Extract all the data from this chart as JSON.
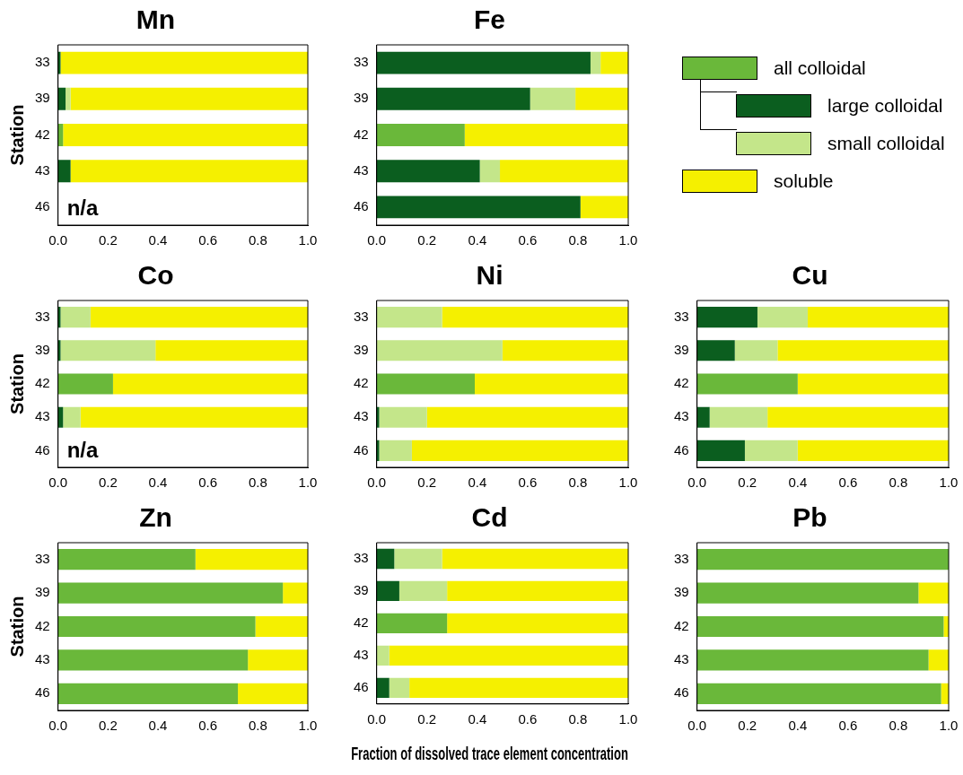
{
  "chart_data": [
    {
      "type": "bar",
      "title": "Mn",
      "ylabel": "Station",
      "orientation": "horizontal",
      "stacked": true,
      "categories": [
        "33",
        "39",
        "42",
        "43",
        "46"
      ],
      "xlim": [
        0,
        1
      ],
      "xticks": [
        {
          "value": 0,
          "label": "0.0"
        },
        {
          "value": 0.2,
          "label": "0.2"
        },
        {
          "value": 0.4,
          "label": "0.4"
        },
        {
          "value": 0.6,
          "label": "0.6"
        },
        {
          "value": 0.8,
          "label": "0.8"
        },
        {
          "value": 1,
          "label": "1.0"
        }
      ],
      "annotations": [
        "n/a"
      ],
      "series": [
        {
          "color": "#6ab83a",
          "values": [
            null,
            null,
            0.02,
            null,
            null
          ]
        },
        {
          "color": "#0b5e1f",
          "values": [
            0.01,
            0.03,
            null,
            0.05,
            null
          ]
        },
        {
          "color": "#c4e68a",
          "values": [
            null,
            0.02,
            null,
            null,
            null
          ]
        },
        {
          "color": "#f5f000",
          "values": [
            0.99,
            0.95,
            0.98,
            0.95,
            null
          ]
        }
      ]
    },
    {
      "type": "bar",
      "title": "Fe",
      "orientation": "horizontal",
      "stacked": true,
      "legend": "right",
      "categories": [
        "33",
        "39",
        "42",
        "43",
        "46"
      ],
      "xlim": [
        0,
        1
      ],
      "xticks": [
        {
          "value": 0,
          "label": "0.0"
        },
        {
          "value": 0.2,
          "label": "0.2"
        },
        {
          "value": 0.4,
          "label": "0.4"
        },
        {
          "value": 0.6,
          "label": "0.6"
        },
        {
          "value": 0.8,
          "label": "0.8"
        },
        {
          "value": 1,
          "label": "1.0"
        }
      ],
      "series": [
        {
          "name": "all colloidal",
          "color": "#6ab83a",
          "values": [
            null,
            null,
            0.35,
            null,
            null
          ]
        },
        {
          "name": "large colloidal",
          "color": "#0b5e1f",
          "values": [
            0.85,
            0.61,
            null,
            0.41,
            0.81
          ]
        },
        {
          "name": "small colloidal",
          "color": "#c4e68a",
          "values": [
            0.04,
            0.18,
            null,
            0.08,
            null
          ]
        },
        {
          "name": "soluble",
          "color": "#f5f000",
          "values": [
            0.11,
            0.21,
            0.65,
            0.51,
            0.19
          ]
        }
      ]
    },
    {
      "type": "bar",
      "title": "Co",
      "ylabel": "Station",
      "orientation": "horizontal",
      "stacked": true,
      "categories": [
        "33",
        "39",
        "42",
        "43",
        "46"
      ],
      "xlim": [
        0,
        1
      ],
      "xticks": [
        {
          "value": 0,
          "label": "0.0"
        },
        {
          "value": 0.2,
          "label": "0.2"
        },
        {
          "value": 0.4,
          "label": "0.4"
        },
        {
          "value": 0.6,
          "label": "0.6"
        },
        {
          "value": 0.8,
          "label": "0.8"
        },
        {
          "value": 1,
          "label": "1.0"
        }
      ],
      "annotations": [
        "n/a"
      ],
      "series": [
        {
          "color": "#6ab83a",
          "values": [
            null,
            null,
            0.22,
            null,
            null
          ]
        },
        {
          "color": "#0b5e1f",
          "values": [
            0.01,
            0.01,
            null,
            0.02,
            null
          ]
        },
        {
          "color": "#c4e68a",
          "values": [
            0.12,
            0.38,
            null,
            0.07,
            null
          ]
        },
        {
          "color": "#f5f000",
          "values": [
            0.87,
            0.61,
            0.78,
            0.91,
            null
          ]
        }
      ]
    },
    {
      "type": "bar",
      "title": "Ni",
      "orientation": "horizontal",
      "stacked": true,
      "categories": [
        "33",
        "39",
        "42",
        "43",
        "46"
      ],
      "xlim": [
        0,
        1
      ],
      "xticks": [
        {
          "value": 0,
          "label": "0.0"
        },
        {
          "value": 0.2,
          "label": "0.2"
        },
        {
          "value": 0.4,
          "label": "0.4"
        },
        {
          "value": 0.6,
          "label": "0.6"
        },
        {
          "value": 0.8,
          "label": "0.8"
        },
        {
          "value": 1,
          "label": "1.0"
        }
      ],
      "series": [
        {
          "color": "#6ab83a",
          "values": [
            null,
            null,
            0.39,
            null,
            null
          ]
        },
        {
          "color": "#0b5e1f",
          "values": [
            null,
            null,
            null,
            0.01,
            0.01
          ]
        },
        {
          "color": "#c4e68a",
          "values": [
            0.26,
            0.5,
            null,
            0.19,
            0.13
          ]
        },
        {
          "color": "#f5f000",
          "values": [
            0.74,
            0.5,
            0.61,
            0.8,
            0.86
          ]
        }
      ]
    },
    {
      "type": "bar",
      "title": "Cu",
      "orientation": "horizontal",
      "stacked": true,
      "categories": [
        "33",
        "39",
        "42",
        "43",
        "46"
      ],
      "xlim": [
        0,
        1
      ],
      "xticks": [
        {
          "value": 0,
          "label": "0.0"
        },
        {
          "value": 0.2,
          "label": "0.2"
        },
        {
          "value": 0.4,
          "label": "0.4"
        },
        {
          "value": 0.6,
          "label": "0.6"
        },
        {
          "value": 0.8,
          "label": "0.8"
        },
        {
          "value": 1,
          "label": "1.0"
        }
      ],
      "series": [
        {
          "color": "#6ab83a",
          "values": [
            null,
            null,
            0.4,
            null,
            null
          ]
        },
        {
          "color": "#0b5e1f",
          "values": [
            0.24,
            0.15,
            null,
            0.05,
            0.19
          ]
        },
        {
          "color": "#c4e68a",
          "values": [
            0.2,
            0.17,
            null,
            0.23,
            0.21
          ]
        },
        {
          "color": "#f5f000",
          "values": [
            0.56,
            0.68,
            0.6,
            0.72,
            0.6
          ]
        }
      ]
    },
    {
      "type": "bar",
      "title": "Zn",
      "ylabel": "Station",
      "orientation": "horizontal",
      "stacked": true,
      "categories": [
        "33",
        "39",
        "42",
        "43",
        "46"
      ],
      "xlim": [
        0,
        1
      ],
      "xticks": [
        {
          "value": 0,
          "label": "0.0"
        },
        {
          "value": 0.2,
          "label": "0.2"
        },
        {
          "value": 0.4,
          "label": "0.4"
        },
        {
          "value": 0.6,
          "label": "0.6"
        },
        {
          "value": 0.8,
          "label": "0.8"
        },
        {
          "value": 1,
          "label": "1.0"
        }
      ],
      "series": [
        {
          "color": "#6ab83a",
          "values": [
            0.55,
            0.9,
            0.79,
            0.76,
            0.72
          ]
        },
        {
          "color": "#f5f000",
          "values": [
            0.45,
            0.1,
            0.21,
            0.24,
            0.28
          ]
        }
      ]
    },
    {
      "type": "bar",
      "title": "Cd",
      "xlabel": "Fraction of dissolved trace element concentration",
      "orientation": "horizontal",
      "stacked": true,
      "categories": [
        "33",
        "39",
        "42",
        "43",
        "46"
      ],
      "xlim": [
        0,
        1
      ],
      "xticks": [
        {
          "value": 0,
          "label": "0.0"
        },
        {
          "value": 0.2,
          "label": "0.2"
        },
        {
          "value": 0.4,
          "label": "0.4"
        },
        {
          "value": 0.6,
          "label": "0.6"
        },
        {
          "value": 0.8,
          "label": "0.8"
        },
        {
          "value": 1,
          "label": "1.0"
        }
      ],
      "series": [
        {
          "color": "#6ab83a",
          "values": [
            null,
            null,
            0.28,
            null,
            null
          ]
        },
        {
          "color": "#0b5e1f",
          "values": [
            0.07,
            0.09,
            null,
            null,
            0.05
          ]
        },
        {
          "color": "#c4e68a",
          "values": [
            0.19,
            0.19,
            null,
            0.05,
            0.08
          ]
        },
        {
          "color": "#f5f000",
          "values": [
            0.74,
            0.72,
            0.72,
            0.95,
            0.87
          ]
        }
      ]
    },
    {
      "type": "bar",
      "title": "Pb",
      "orientation": "horizontal",
      "stacked": true,
      "categories": [
        "33",
        "39",
        "42",
        "43",
        "46"
      ],
      "xlim": [
        0,
        1
      ],
      "xticks": [
        {
          "value": 0,
          "label": "0.0"
        },
        {
          "value": 0.2,
          "label": "0.2"
        },
        {
          "value": 0.4,
          "label": "0.4"
        },
        {
          "value": 0.6,
          "label": "0.6"
        },
        {
          "value": 0.8,
          "label": "0.8"
        },
        {
          "value": 1,
          "label": "1.0"
        }
      ],
      "series": [
        {
          "color": "#6ab83a",
          "values": [
            1.0,
            0.88,
            0.98,
            0.92,
            0.97
          ]
        },
        {
          "color": "#f5f000",
          "values": [
            null,
            0.12,
            0.02,
            0.08,
            0.03
          ]
        }
      ]
    }
  ]
}
